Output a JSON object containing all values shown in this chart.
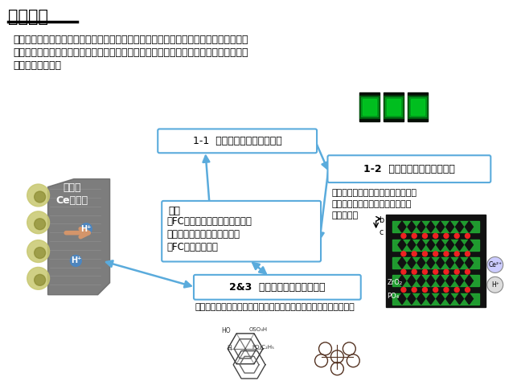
{
  "title": "研究概略",
  "intro_line1": "生体と同様に活性ラジカルが、燃料電池の寿命を短くしている。その活性ラジカルを消",
  "intro_line2": "滅させるのがクエンチャーであり、本研究では新規クエンチャーの高機能化に関する研",
  "intro_line3": "究を行っている。",
  "box1_label": "1-1  クエンチャー移動の解析",
  "box2_label": "1-2  クエンチャー移動の抑制",
  "box2_sub1": "セリウム系ラジカルクエンチャーを",
  "box2_sub2": "内包することで、クエンチャーの",
  "box2_sub3": "移動を抑制",
  "box3_title": "課題",
  "box3_line1": "・FC運転時のクエンチャー移動",
  "box3_line2": "・電解質膜の劣化、性能低下",
  "box3_line3": "・FC耐久性の低下",
  "box4_label": "2&3  新規クエンチャーの開発",
  "box4_sub": "分散性の高い有機低分子クエンチャー、クエンチャーの高分子量化",
  "ce_label1": "Ceイオン",
  "ce_label2": "の移動",
  "bg_color": "#ffffff",
  "box_edge_color": "#5aabdc",
  "box_fill_color": "#ffffff",
  "arrow_color": "#5aabdc",
  "title_color": "#000000",
  "text_color": "#000000",
  "membrane_color": "#888888",
  "yellow_circle_color": "#c8c870",
  "orange_arrow_color": "#d4956a"
}
